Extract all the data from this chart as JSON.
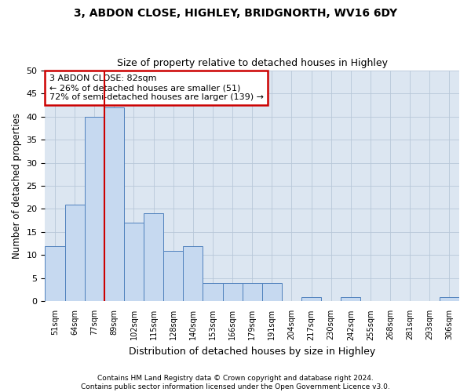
{
  "title1": "3, ABDON CLOSE, HIGHLEY, BRIDGNORTH, WV16 6DY",
  "title2": "Size of property relative to detached houses in Highley",
  "xlabel": "Distribution of detached houses by size in Highley",
  "ylabel": "Number of detached properties",
  "footnote1": "Contains HM Land Registry data © Crown copyright and database right 2024.",
  "footnote2": "Contains public sector information licensed under the Open Government Licence v3.0.",
  "categories": [
    "51sqm",
    "64sqm",
    "77sqm",
    "89sqm",
    "102sqm",
    "115sqm",
    "128sqm",
    "140sqm",
    "153sqm",
    "166sqm",
    "179sqm",
    "191sqm",
    "204sqm",
    "217sqm",
    "230sqm",
    "242sqm",
    "255sqm",
    "268sqm",
    "281sqm",
    "293sqm",
    "306sqm"
  ],
  "values": [
    12,
    21,
    40,
    42,
    17,
    19,
    11,
    12,
    4,
    4,
    4,
    4,
    0,
    1,
    0,
    1,
    0,
    0,
    0,
    0,
    1
  ],
  "bar_color": "#c6d9f0",
  "bar_edge_color": "#4f81bd",
  "grid_color": "#b8c7d8",
  "background_color": "#dce6f1",
  "annotation_text": "3 ABDON CLOSE: 82sqm\n← 26% of detached houses are smaller (51)\n72% of semi-detached houses are larger (139) →",
  "annotation_box_edge": "#cc0000",
  "red_line_x": 2.5,
  "ylim": [
    0,
    50
  ],
  "yticks": [
    0,
    5,
    10,
    15,
    20,
    25,
    30,
    35,
    40,
    45,
    50
  ]
}
